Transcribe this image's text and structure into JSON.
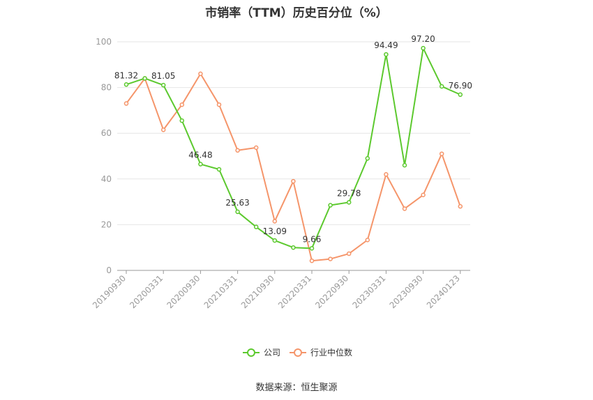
{
  "chart_data": {
    "type": "line",
    "title": "市销率（TTM）历史百分位（%）",
    "xlabel": "",
    "ylabel": "",
    "ylim": [
      0,
      100
    ],
    "yticks": [
      0,
      20,
      40,
      60,
      80,
      100
    ],
    "x": [
      "20190930",
      "20191231",
      "20200331",
      "20200630",
      "20200930",
      "20201231",
      "20210331",
      "20210630",
      "20210930",
      "20211231",
      "20220331",
      "20220630",
      "20220930",
      "20221231",
      "20230331",
      "20230630",
      "20230930",
      "20231231",
      "20240123"
    ],
    "xtick_labels": [
      "20190930",
      "20200331",
      "20200930",
      "20210331",
      "20210930",
      "20220331",
      "20220930",
      "20230331",
      "20230930",
      "20240123"
    ],
    "grid": "horizontal",
    "legend_position": "bottom",
    "series": [
      {
        "name": "公司",
        "color": "#5CC92E",
        "values": [
          81.32,
          84.0,
          81.05,
          65.5,
          46.48,
          44.2,
          25.63,
          19.0,
          13.09,
          10.0,
          9.66,
          28.5,
          29.78,
          49.0,
          94.49,
          46.0,
          97.2,
          80.5,
          76.9
        ],
        "labels": [
          "81.32",
          "",
          "81.05",
          "",
          "46.48",
          "",
          "25.63",
          "",
          "13.09",
          "",
          "9.66",
          "",
          "29.78",
          "",
          "94.49",
          "",
          "97.20",
          "",
          "76.90"
        ]
      },
      {
        "name": "行业中位数",
        "color": "#F5956A",
        "values": [
          73.0,
          84.0,
          61.5,
          72.5,
          86.0,
          72.5,
          52.5,
          53.7,
          21.5,
          39.0,
          4.2,
          5.0,
          7.3,
          13.3,
          42.0,
          27.0,
          33.0,
          51.0,
          28.0
        ],
        "labels": []
      }
    ]
  },
  "source": "数据来源：恒生聚源"
}
